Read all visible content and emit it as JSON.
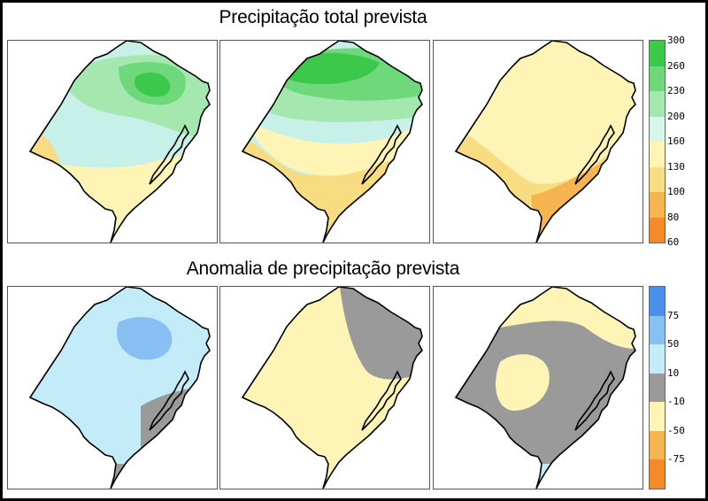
{
  "titles": {
    "top": "Precipitação total prevista",
    "bottom": "Anomalia de precipitação prevista"
  },
  "legend_precip": {
    "colors": [
      "#3cc84a",
      "#6ed87a",
      "#a4e8b0",
      "#d6f7ea",
      "#fdf4b6",
      "#f8dc82",
      "#f5b450",
      "#f58a28"
    ],
    "labels": [
      "300",
      "260",
      "230",
      "200",
      "160",
      "130",
      "100",
      "80",
      "60"
    ]
  },
  "legend_anom": {
    "colors": [
      "#4a90e8",
      "#88c0f4",
      "#c4ecf8",
      "#9a9a9a",
      "#fdf4b6",
      "#f5b450",
      "#f58a28"
    ],
    "labels": [
      "75",
      "50",
      "10",
      "-10",
      "-50",
      "-75"
    ]
  },
  "panels": {
    "precip_1": {
      "base": "#c6f0e8",
      "colors": [
        "#f8dc82",
        "#fdf4b6",
        "#a4e8b0",
        "#6ed87a",
        "#3cc84a"
      ]
    },
    "precip_2": {
      "base": "#c6f0e8",
      "colors": [
        "#f5b450",
        "#f8dc82",
        "#fdf4b6",
        "#a4e8b0",
        "#6ed87a",
        "#3cc84a"
      ]
    },
    "precip_3": {
      "base": "#fdf4b6",
      "colors": [
        "#f8dc82",
        "#f5b450",
        "#c6f0e8"
      ]
    },
    "anom_1": {
      "base": "#c4ecf8",
      "colors": [
        "#88c0f4",
        "#9a9a9a"
      ]
    },
    "anom_2": {
      "base": "#fdf4b6",
      "colors": [
        "#9a9a9a",
        "#c4ecf8"
      ]
    },
    "anom_3": {
      "base": "#9a9a9a",
      "colors": [
        "#fdf4b6",
        "#c4ecf8"
      ]
    }
  }
}
